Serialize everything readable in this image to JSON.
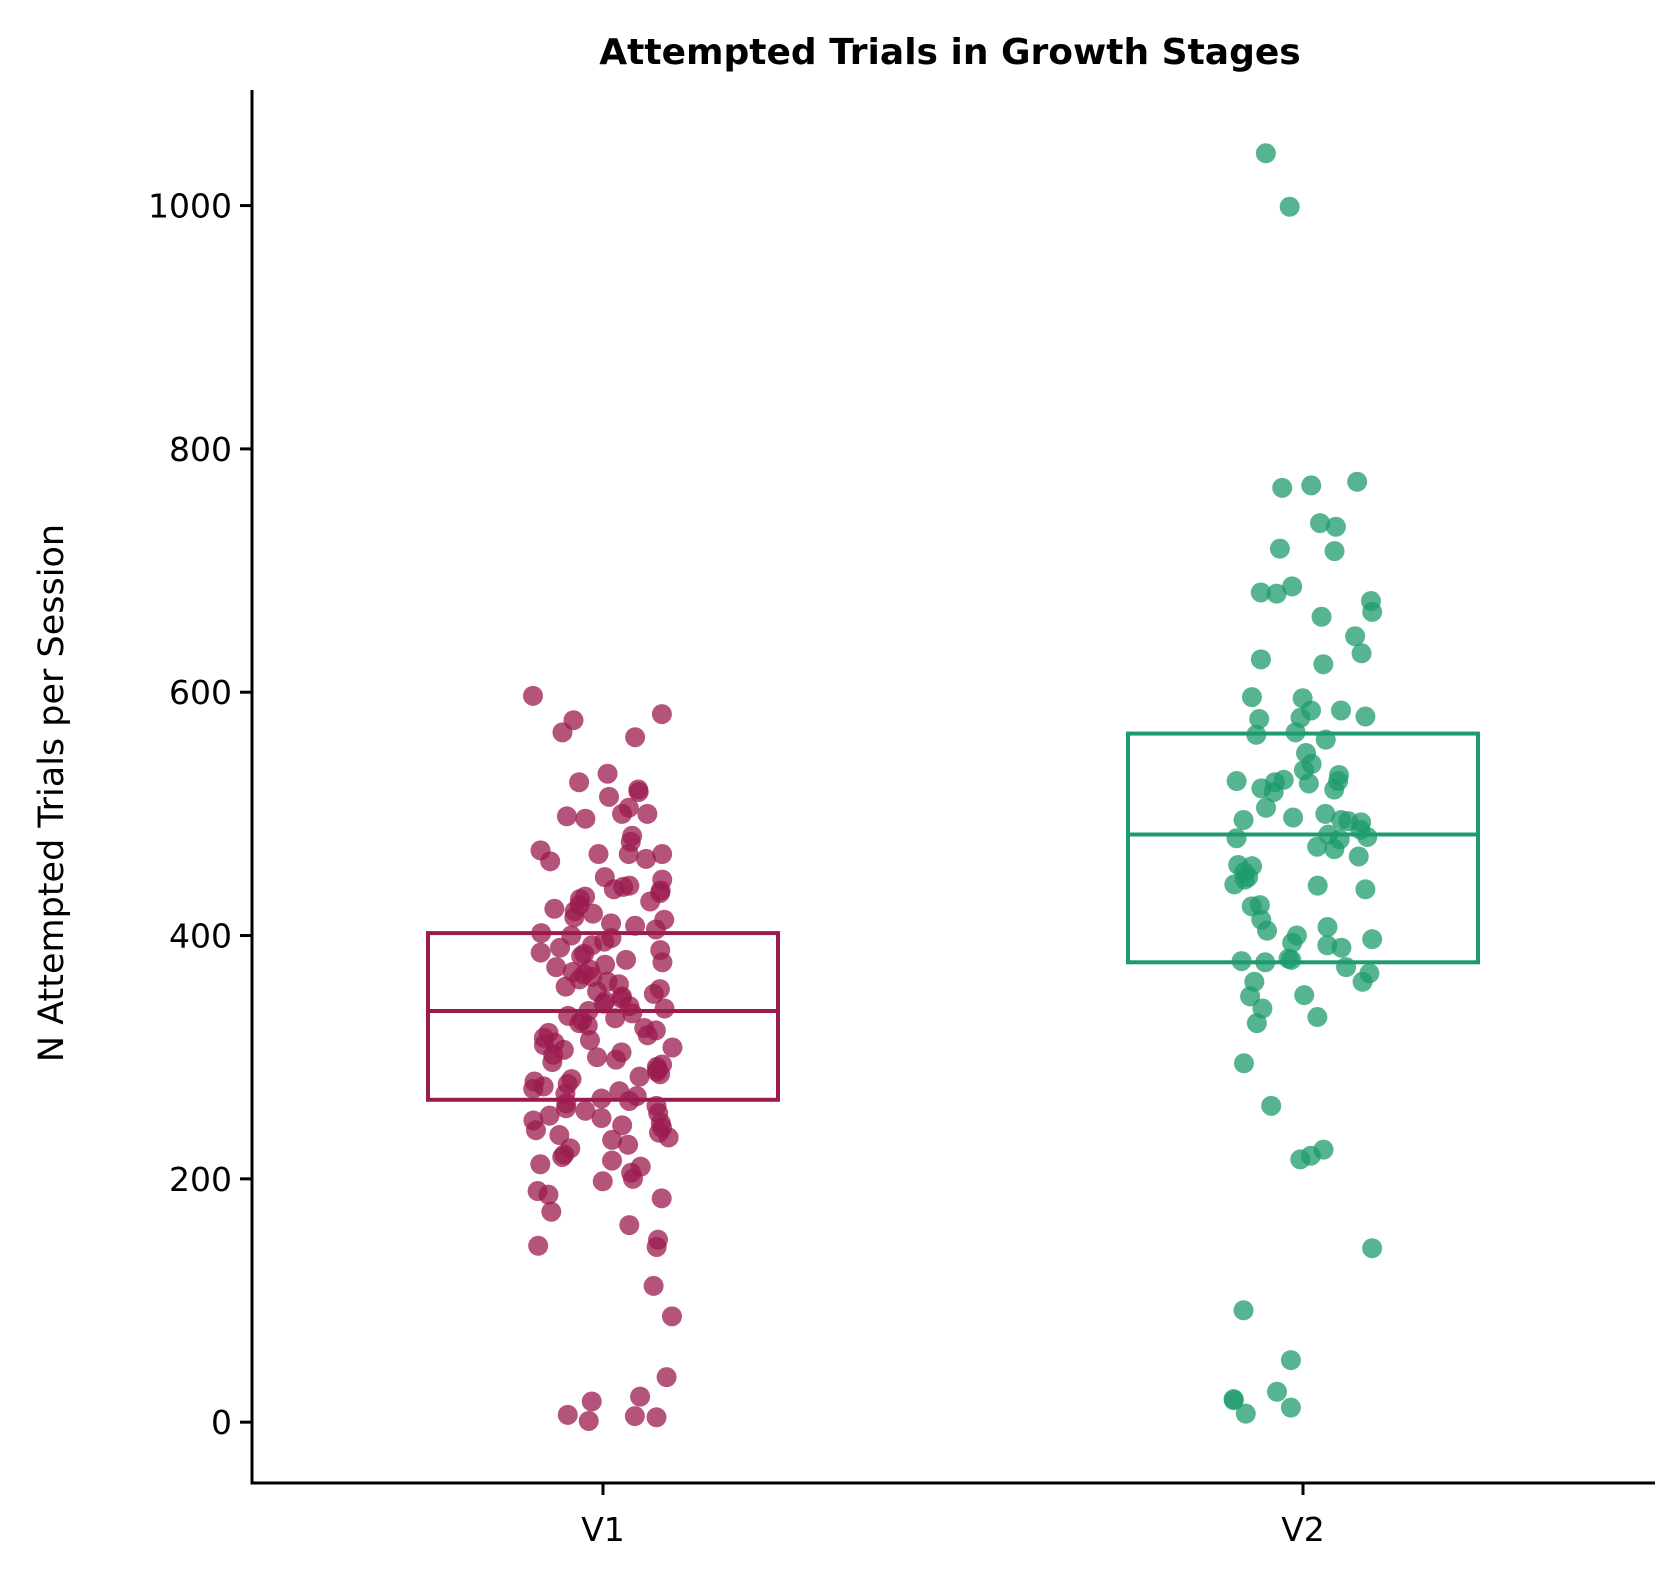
{
  "chart_data": {
    "type": "scatter",
    "subtype": "strip-with-box",
    "title": "Attempted Trials in Growth Stages",
    "xlabel": "",
    "ylabel": "N Attempted Trials per Session",
    "categories": [
      "V1",
      "V2"
    ],
    "ylim": [
      -50,
      1095
    ],
    "yticks": [
      0,
      200,
      400,
      600,
      800,
      1000
    ],
    "grid": false,
    "legend": "none",
    "series": [
      {
        "category": "V1",
        "color": "#9b1b4f",
        "box": {
          "q1": 265,
          "median": 338,
          "q3": 402
        },
        "values": [
          597,
          582,
          577,
          567,
          563,
          533,
          526,
          520,
          518,
          514,
          505,
          500,
          500,
          498,
          496,
          482,
          477,
          470,
          467,
          467,
          467,
          463,
          461,
          448,
          446,
          441,
          440,
          438,
          437,
          435,
          432,
          430,
          428,
          425,
          422,
          420,
          418,
          415,
          413,
          410,
          408,
          405,
          402,
          400,
          398,
          395,
          392,
          390,
          388,
          386,
          385,
          383,
          380,
          378,
          376,
          374,
          372,
          370,
          368,
          366,
          364,
          362,
          360,
          358,
          356,
          354,
          352,
          350,
          348,
          346,
          344,
          342,
          340,
          338,
          336,
          334,
          332,
          330,
          328,
          326,
          324,
          322,
          320,
          318,
          316,
          314,
          312,
          310,
          308,
          306,
          304,
          302,
          300,
          298,
          296,
          294,
          292,
          290,
          288,
          286,
          284,
          282,
          280,
          278,
          276,
          274,
          272,
          270,
          268,
          266,
          264,
          262,
          260,
          258,
          256,
          254,
          252,
          250,
          248,
          246,
          244,
          242,
          240,
          238,
          236,
          234,
          232,
          228,
          225,
          220,
          218,
          215,
          212,
          210,
          205,
          200,
          198,
          190,
          187,
          184,
          173,
          162,
          150,
          145,
          144,
          112,
          87,
          37,
          21,
          17,
          6,
          5,
          4,
          1
        ]
      },
      {
        "category": "V2",
        "color": "#1d9b6c",
        "box": {
          "q1": 378,
          "median": 483,
          "q3": 566
        },
        "values": [
          1043,
          999,
          773,
          770,
          768,
          739,
          736,
          718,
          716,
          687,
          682,
          681,
          675,
          666,
          662,
          646,
          632,
          627,
          623,
          596,
          595,
          585,
          585,
          580,
          579,
          578,
          567,
          565,
          561,
          550,
          541,
          536,
          532,
          528,
          527,
          527,
          526,
          525,
          521,
          520,
          518,
          505,
          500,
          497,
          495,
          495,
          494,
          493,
          487,
          483,
          481,
          480,
          479,
          473,
          471,
          465,
          458,
          457,
          452,
          448,
          446,
          442,
          441,
          438,
          425,
          424,
          413,
          407,
          404,
          400,
          397,
          394,
          392,
          390,
          381,
          380,
          379,
          378,
          374,
          369,
          362,
          362,
          351,
          350,
          340,
          333,
          328,
          295,
          260,
          224,
          219,
          216,
          143,
          92,
          51,
          25,
          19,
          18,
          12,
          7
        ]
      }
    ]
  }
}
